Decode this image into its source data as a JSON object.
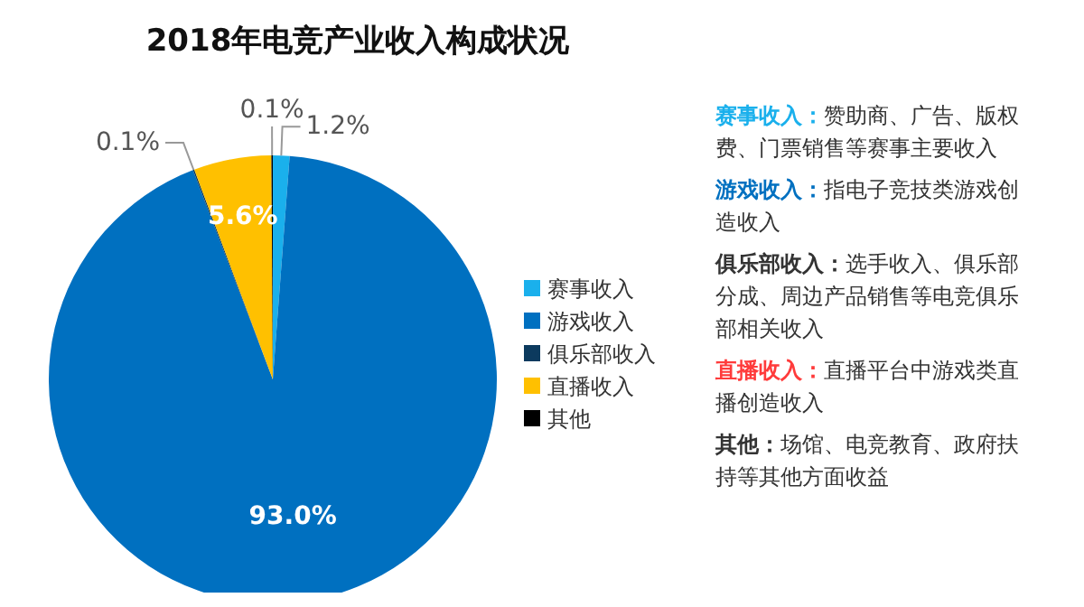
{
  "chart_data": {
    "type": "pie",
    "title": "2018年电竞产业收入构成状况",
    "categories": [
      "赛事收入",
      "游戏收入",
      "俱乐部收入",
      "直播收入",
      "其他"
    ],
    "values": [
      1.2,
      93.0,
      0.1,
      5.6,
      0.1
    ],
    "colors": [
      "#1ab0ec",
      "#0070c0",
      "#0c3a5e",
      "#ffc000",
      "#000000"
    ],
    "value_labels": [
      "1.2%",
      "93.0%",
      "0.1%",
      "5.6%",
      "0.1%"
    ],
    "legend": "right",
    "annotations": [
      "赛事收入：赞助商、广告、版权费、门票销售等赛事主要收入",
      "游戏收入：指电子竞技类游戏创造收入",
      "俱乐部收入：选手收入、俱乐部分成、周边产品销售等电竞俱乐部相关收入",
      "直播收入：直播平台中游戏类直播创造收入",
      "其他：场馆、电竞教育、政府扶持等其他方面收益"
    ]
  }
}
